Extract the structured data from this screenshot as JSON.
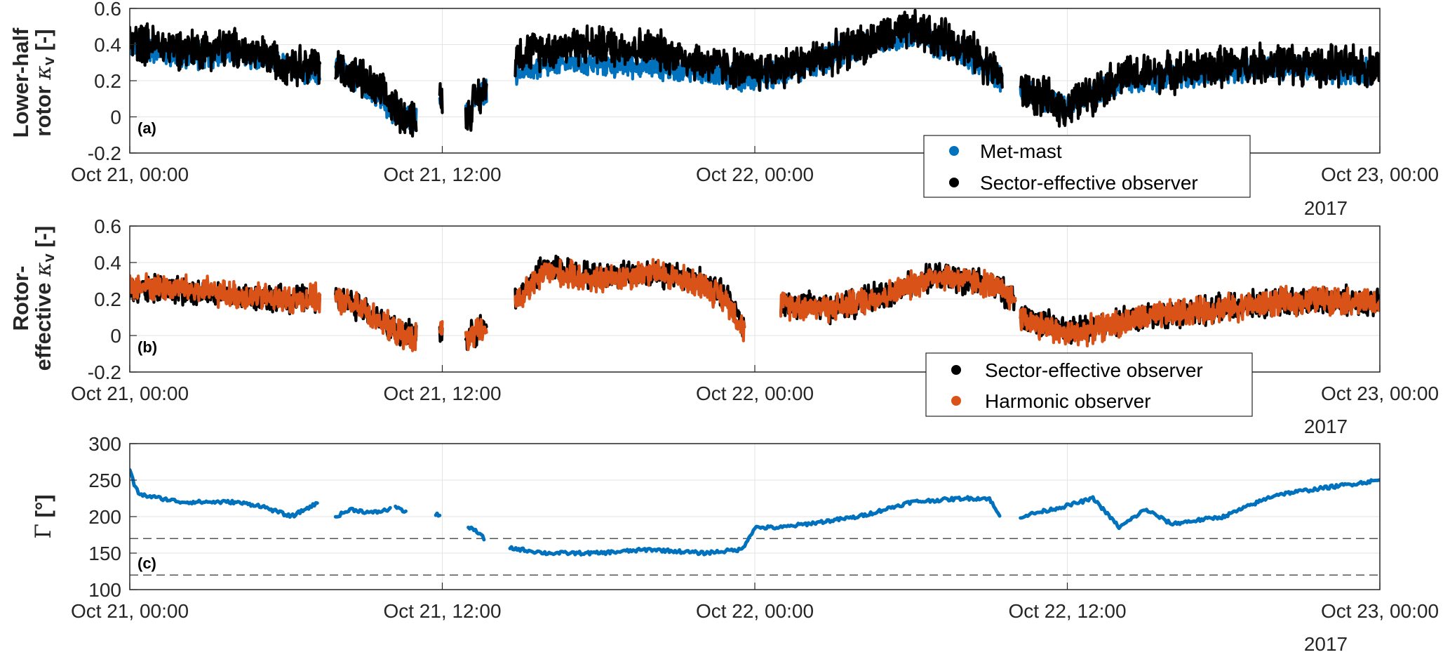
{
  "colors": {
    "metmast": "#0072BD",
    "sector": "#000000",
    "harmonic": "#D95319",
    "gamma": "#0072BD",
    "grid": "#e3e3e3",
    "axis": "#262626"
  },
  "chart_data": [
    {
      "id": "a",
      "type": "scatter",
      "panel_label": "(a)",
      "ylabel_lines": [
        "Lower-half",
        "rotor"
      ],
      "ylabel_symbol": "κ",
      "ylabel_sub": "v",
      "ylabel_unit": "[-]",
      "ylim": [
        -0.2,
        0.6
      ],
      "yticks": [
        "-0.2",
        "0",
        "0.2",
        "0.4",
        "0.6"
      ],
      "xlim_hours": [
        0,
        48
      ],
      "xticks": [
        "Oct 21, 00:00",
        "Oct 21, 12:00",
        "Oct 22, 00:00",
        "Oct 23, 00:00"
      ],
      "year_label": "2017",
      "grid": true,
      "legend_position": "bottom-right",
      "legend": [
        "Met-mast",
        "Sector-effective observer"
      ],
      "series": [
        {
          "name": "Met-mast",
          "color": "#0072BD",
          "segments": [
            {
              "x": [
                0,
                2,
                4,
                6,
                7.3
              ],
              "y": [
                0.4,
                0.33,
                0.35,
                0.28,
                0.24
              ]
            },
            {
              "x": [
                7.9,
                9,
                10,
                10.6,
                11
              ],
              "y": [
                0.28,
                0.18,
                0.05,
                -0.01,
                -0.02
              ]
            },
            {
              "x": [
                11.9,
                12.0
              ],
              "y": [
                0.1,
                0.1
              ]
            },
            {
              "x": [
                12.9,
                13.3,
                13.7
              ],
              "y": [
                0.0,
                0.1,
                0.15
              ]
            },
            {
              "x": [
                14.8,
                17,
                20,
                22,
                24,
                26,
                28,
                30,
                32,
                33.5
              ],
              "y": [
                0.25,
                0.3,
                0.28,
                0.25,
                0.2,
                0.28,
                0.38,
                0.45,
                0.35,
                0.2
              ]
            },
            {
              "x": [
                34.2,
                36,
                38,
                40,
                42,
                44,
                46,
                48
              ],
              "y": [
                0.15,
                0.05,
                0.2,
                0.22,
                0.25,
                0.28,
                0.25,
                0.25
              ]
            }
          ]
        },
        {
          "name": "Sector-effective observer",
          "color": "#000000",
          "segments": [
            {
              "x": [
                0,
                2,
                4,
                6,
                7.3
              ],
              "y": [
                0.42,
                0.38,
                0.38,
                0.3,
                0.28
              ]
            },
            {
              "x": [
                7.9,
                9,
                10,
                10.6,
                11
              ],
              "y": [
                0.28,
                0.2,
                0.08,
                0.0,
                0.0
              ]
            },
            {
              "x": [
                11.9,
                12.0
              ],
              "y": [
                0.1,
                0.1
              ]
            },
            {
              "x": [
                12.9,
                13.3,
                13.7
              ],
              "y": [
                0.0,
                0.1,
                0.15
              ]
            },
            {
              "x": [
                14.8,
                17,
                20,
                22,
                24,
                26,
                28,
                30,
                32,
                33.5
              ],
              "y": [
                0.35,
                0.4,
                0.38,
                0.3,
                0.25,
                0.3,
                0.4,
                0.48,
                0.4,
                0.22
              ]
            },
            {
              "x": [
                34.2,
                36,
                38,
                40,
                42,
                44,
                46,
                48
              ],
              "y": [
                0.15,
                0.05,
                0.22,
                0.25,
                0.28,
                0.3,
                0.28,
                0.28
              ]
            }
          ]
        }
      ]
    },
    {
      "id": "b",
      "type": "scatter",
      "panel_label": "(b)",
      "ylabel_lines": [
        "Rotor-",
        "effective"
      ],
      "ylabel_symbol": "κ",
      "ylabel_sub": "v",
      "ylabel_unit": "[-]",
      "ylim": [
        -0.2,
        0.6
      ],
      "yticks": [
        "-0.2",
        "0",
        "0.2",
        "0.4",
        "0.6"
      ],
      "xlim_hours": [
        0,
        48
      ],
      "xticks": [
        "Oct 21, 00:00",
        "Oct 21, 12:00",
        "Oct 22, 00:00",
        "Oct 23, 00:00"
      ],
      "year_label": "2017",
      "grid": true,
      "legend_position": "bottom-right",
      "legend": [
        "Sector-effective observer",
        "Harmonic observer"
      ],
      "series": [
        {
          "name": "Sector-effective observer",
          "color": "#000000",
          "segments": [
            {
              "x": [
                0,
                2,
                4,
                6,
                7.3
              ],
              "y": [
                0.26,
                0.25,
                0.22,
                0.2,
                0.2
              ]
            },
            {
              "x": [
                7.9,
                9,
                10,
                10.6,
                11
              ],
              "y": [
                0.2,
                0.15,
                0.05,
                0.0,
                0.0
              ]
            },
            {
              "x": [
                11.9,
                12.0
              ],
              "y": [
                0.03,
                0.03
              ]
            },
            {
              "x": [
                12.9,
                13.3,
                13.7
              ],
              "y": [
                -0.02,
                0.02,
                0.05
              ]
            },
            {
              "x": [
                14.8,
                16,
                18,
                20,
                22,
                23,
                23.6
              ],
              "y": [
                0.2,
                0.38,
                0.32,
                0.35,
                0.3,
                0.2,
                0.05
              ]
            },
            {
              "x": [
                25,
                27,
                29,
                31,
                33,
                34
              ],
              "y": [
                0.18,
                0.15,
                0.22,
                0.33,
                0.28,
                0.2
              ]
            },
            {
              "x": [
                34.2,
                36,
                38,
                40,
                42,
                44,
                46,
                48
              ],
              "y": [
                0.12,
                0.02,
                0.08,
                0.12,
                0.15,
                0.18,
                0.2,
                0.18
              ]
            }
          ]
        },
        {
          "name": "Harmonic observer",
          "color": "#D95319",
          "segments": [
            {
              "x": [
                0,
                2,
                4,
                6,
                7.3
              ],
              "y": [
                0.27,
                0.26,
                0.22,
                0.2,
                0.2
              ]
            },
            {
              "x": [
                7.9,
                9,
                10,
                10.6,
                11
              ],
              "y": [
                0.2,
                0.14,
                0.04,
                -0.01,
                -0.01
              ]
            },
            {
              "x": [
                11.9,
                12.0
              ],
              "y": [
                0.03,
                0.03
              ]
            },
            {
              "x": [
                12.9,
                13.3,
                13.7
              ],
              "y": [
                -0.03,
                0.01,
                0.04
              ]
            },
            {
              "x": [
                14.8,
                16,
                18,
                20,
                22,
                23,
                23.6
              ],
              "y": [
                0.18,
                0.35,
                0.3,
                0.35,
                0.28,
                0.18,
                0.02
              ]
            },
            {
              "x": [
                25,
                27,
                29,
                31,
                33,
                34
              ],
              "y": [
                0.17,
                0.15,
                0.22,
                0.33,
                0.28,
                0.2
              ]
            },
            {
              "x": [
                34.2,
                36,
                38,
                40,
                42,
                44,
                46,
                48
              ],
              "y": [
                0.1,
                0.0,
                0.07,
                0.12,
                0.15,
                0.18,
                0.2,
                0.17
              ]
            }
          ]
        }
      ]
    },
    {
      "id": "c",
      "type": "scatter",
      "panel_label": "(c)",
      "ylabel_symbol": "Γ",
      "ylabel_unit": "[°]",
      "ylim": [
        100,
        300
      ],
      "yticks": [
        "100",
        "150",
        "200",
        "250",
        "300"
      ],
      "xlim_hours": [
        0,
        48
      ],
      "xticks": [
        "Oct 21, 00:00",
        "Oct 21, 12:00",
        "Oct 22, 00:00",
        "Oct 22, 12:00",
        "Oct 23, 00:00"
      ],
      "year_label": "2017",
      "grid": true,
      "reference_lines": [
        170,
        120
      ],
      "series": [
        {
          "name": "",
          "color": "#0072BD",
          "segments": [
            {
              "x": [
                0,
                0.2,
                0.4,
                2,
                4,
                5,
                6.2,
                7,
                7.2
              ],
              "y": [
                265,
                240,
                230,
                220,
                220,
                215,
                200,
                215,
                218
              ]
            },
            {
              "x": [
                7.9,
                8.5,
                9.3,
                10
              ],
              "y": [
                200,
                210,
                205,
                210
              ]
            },
            {
              "x": [
                10.2,
                10.4,
                10.6
              ],
              "y": [
                215,
                210,
                205
              ]
            },
            {
              "x": [
                11.75,
                11.9
              ],
              "y": [
                203,
                203
              ]
            },
            {
              "x": [
                13.0,
                13.3,
                13.6
              ],
              "y": [
                185,
                180,
                170
              ]
            },
            {
              "x": [
                14.6,
                16,
                18,
                20,
                22,
                23.5,
                24,
                25,
                26,
                28,
                30,
                32,
                33,
                33.4
              ],
              "y": [
                157,
                150,
                150,
                155,
                150,
                155,
                185,
                185,
                190,
                200,
                220,
                225,
                225,
                200
              ]
            },
            {
              "x": [
                34.2,
                36,
                37,
                38,
                39,
                40,
                42,
                44,
                46,
                48
              ],
              "y": [
                200,
                215,
                225,
                185,
                210,
                190,
                200,
                230,
                240,
                250
              ]
            }
          ]
        }
      ]
    }
  ]
}
